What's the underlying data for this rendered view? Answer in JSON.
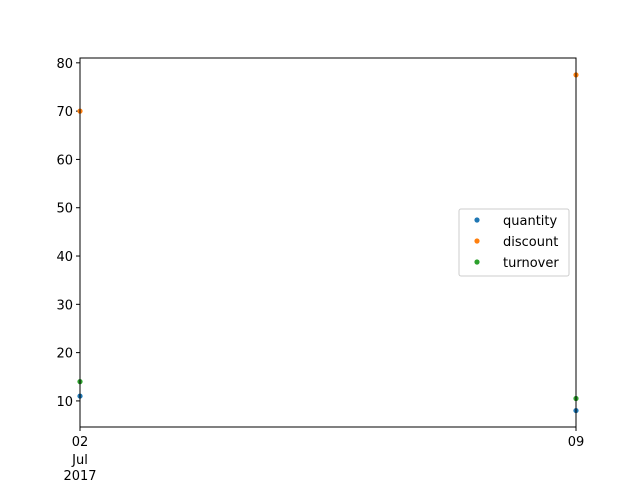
{
  "chart_data": {
    "type": "scatter",
    "title": "",
    "xlabel": "",
    "ylabel": "",
    "x": [
      "2017-07-02",
      "2017-07-09"
    ],
    "series": [
      {
        "name": "quantity",
        "color": "#1f77b4",
        "values": [
          11,
          8
        ]
      },
      {
        "name": "discount",
        "color": "#ff7f0e",
        "values": [
          70,
          77.5
        ]
      },
      {
        "name": "turnover",
        "color": "#2ca02c",
        "values": [
          14,
          10.5
        ]
      }
    ],
    "xlim": [
      "2017-07-02",
      "2017-07-09"
    ],
    "ylim": [
      4.6,
      81
    ],
    "x_ticks": [
      {
        "value": "2017-07-02",
        "label": "02",
        "sublabels": [
          "Jul",
          "2017"
        ]
      },
      {
        "value": "2017-07-09",
        "label": "09",
        "sublabels": []
      }
    ],
    "y_ticks": [
      10,
      20,
      30,
      40,
      50,
      60,
      70,
      80
    ],
    "grid": false,
    "legend": "center-right"
  }
}
